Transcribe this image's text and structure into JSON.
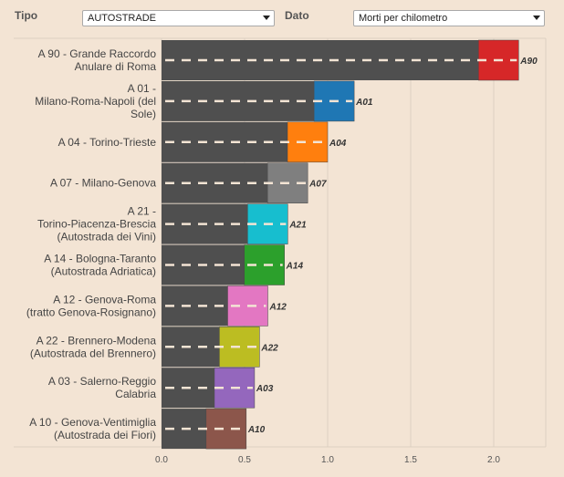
{
  "controls": {
    "tipo_label": "Tipo",
    "tipo_value": "AUTOSTRADE",
    "dato_label": "Dato",
    "dato_value": "Morti per chilometro"
  },
  "colors": {
    "background": "#f3e4d4",
    "road": "#4f4f4f",
    "lane_marking": "#f3e4d4"
  },
  "chart_data": {
    "type": "bar",
    "orientation": "horizontal",
    "title": "",
    "xlabel": "",
    "ylabel": "",
    "xlim": [
      0,
      2.25
    ],
    "x_ticks": [
      "0.0",
      "0.5",
      "1.0",
      "1.5",
      "2.0"
    ],
    "x_tick_values": [
      0,
      0.5,
      1.0,
      1.5,
      2.0
    ],
    "grid": true,
    "categories": [
      [
        "A 90 - Grande Raccordo",
        "Anulare di Roma"
      ],
      [
        "A 01 -",
        "Milano-Roma-Napoli (del",
        "Sole)"
      ],
      [
        "A 04 - Torino-Trieste"
      ],
      [
        "A 07 - Milano-Genova"
      ],
      [
        "A 21 -",
        "Torino-Piacenza-Brescia",
        "(Autostrada dei Vini)"
      ],
      [
        "A 14 - Bologna-Taranto",
        "(Autostrada Adriatica)"
      ],
      [
        "A 12 - Genova-Roma",
        "(tratto Genova-Rosignano)"
      ],
      [
        "A 22 - Brennero-Modena",
        "(Autostrada del Brennero)"
      ],
      [
        "A 03 - Salerno-Reggio",
        "Calabria"
      ],
      [
        "A 10 - Genova-Ventimiglia",
        "(Autostrada dei Fiori)"
      ]
    ],
    "codes": [
      "A90",
      "A01",
      "A04",
      "A07",
      "A21",
      "A14",
      "A12",
      "A22",
      "A03",
      "A10"
    ],
    "values": [
      2.15,
      1.16,
      1.0,
      0.88,
      0.76,
      0.74,
      0.64,
      0.59,
      0.56,
      0.51
    ],
    "colors": [
      "#d62728",
      "#1f77b4",
      "#ff7f0e",
      "#7f7f7f",
      "#17becf",
      "#2ca02c",
      "#e377c2",
      "#bcbd22",
      "#9467bd",
      "#8c564b"
    ]
  }
}
